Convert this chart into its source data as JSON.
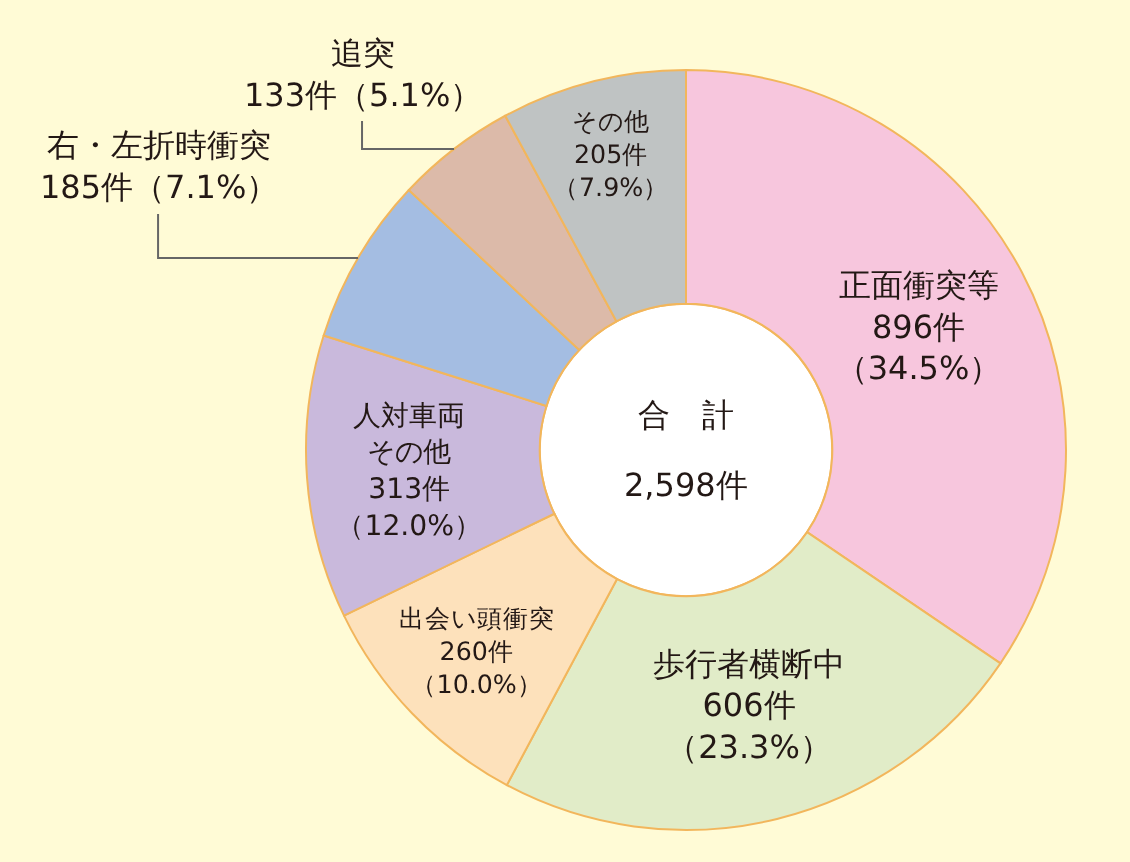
{
  "chart_data": {
    "type": "donut",
    "categories": [
      "正面衝突等",
      "歩行者横断中",
      "出会い頭衝突",
      "人対車両その他",
      "右・左折時衝突",
      "追突",
      "その他"
    ],
    "values": [
      896,
      606,
      260,
      313,
      185,
      133,
      205
    ],
    "colors": [
      "#f7c6dd",
      "#e1ecc8",
      "#fde1bb",
      "#c9b9dc",
      "#a4bde2",
      "#dcbaa9",
      "#bfc3c3"
    ],
    "value_labels": [
      "896件（34.5%）",
      "606件（23.3%）",
      "260件（10.0%）",
      "313件（12.0%）",
      "185件（7.1%）",
      "133件（5.1%）",
      "205件（7.9%）"
    ],
    "annotations": [
      "合　計",
      "2,598件"
    ]
  }
}
